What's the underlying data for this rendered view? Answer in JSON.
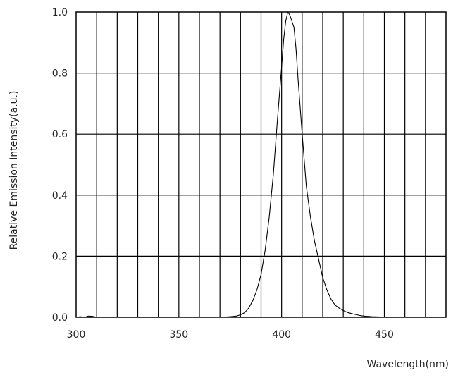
{
  "chart_data": {
    "type": "line",
    "title": "",
    "xlabel": "Wavelength(nm)",
    "ylabel": "Relative Emission Intensity(a.u.)",
    "xlim": [
      300,
      480
    ],
    "ylim": [
      0,
      1.0
    ],
    "x_ticks": [
      300,
      350,
      400,
      450
    ],
    "y_ticks": [
      0.0,
      0.2,
      0.4,
      0.6,
      0.8,
      1.0
    ],
    "x_tick_labels": [
      "300",
      "350",
      "400",
      "450"
    ],
    "y_tick_labels": [
      "0.0",
      "0.2",
      "0.4",
      "0.6",
      "0.8",
      "1.0"
    ],
    "x_grid_step": 10,
    "y_grid_step": 0.2,
    "grid": true,
    "legend": "none",
    "series": [
      {
        "x": [
          300,
          302,
          304,
          306,
          308,
          310,
          320,
          340,
          360,
          370,
          375,
          378,
          380,
          382,
          384,
          386,
          388,
          390,
          392,
          394,
          396,
          398,
          400,
          401,
          402,
          403,
          404,
          405,
          406,
          407,
          408,
          410,
          412,
          414,
          416,
          418,
          420,
          422,
          424,
          426,
          428,
          430,
          432,
          434,
          436,
          438,
          440,
          444,
          448,
          452,
          456,
          460,
          470,
          480
        ],
        "y": [
          0.0,
          0.002,
          0.0,
          0.004,
          0.003,
          0.0,
          0.0,
          0.0,
          0.0,
          0.0,
          0.002,
          0.004,
          0.008,
          0.015,
          0.03,
          0.055,
          0.09,
          0.14,
          0.22,
          0.33,
          0.47,
          0.65,
          0.82,
          0.91,
          0.97,
          1.0,
          0.99,
          0.97,
          0.95,
          0.88,
          0.78,
          0.6,
          0.43,
          0.33,
          0.25,
          0.19,
          0.13,
          0.09,
          0.06,
          0.04,
          0.03,
          0.022,
          0.016,
          0.012,
          0.009,
          0.006,
          0.004,
          0.002,
          0.001,
          0.0,
          0.0,
          0.0,
          0.0,
          0.0
        ]
      }
    ]
  }
}
